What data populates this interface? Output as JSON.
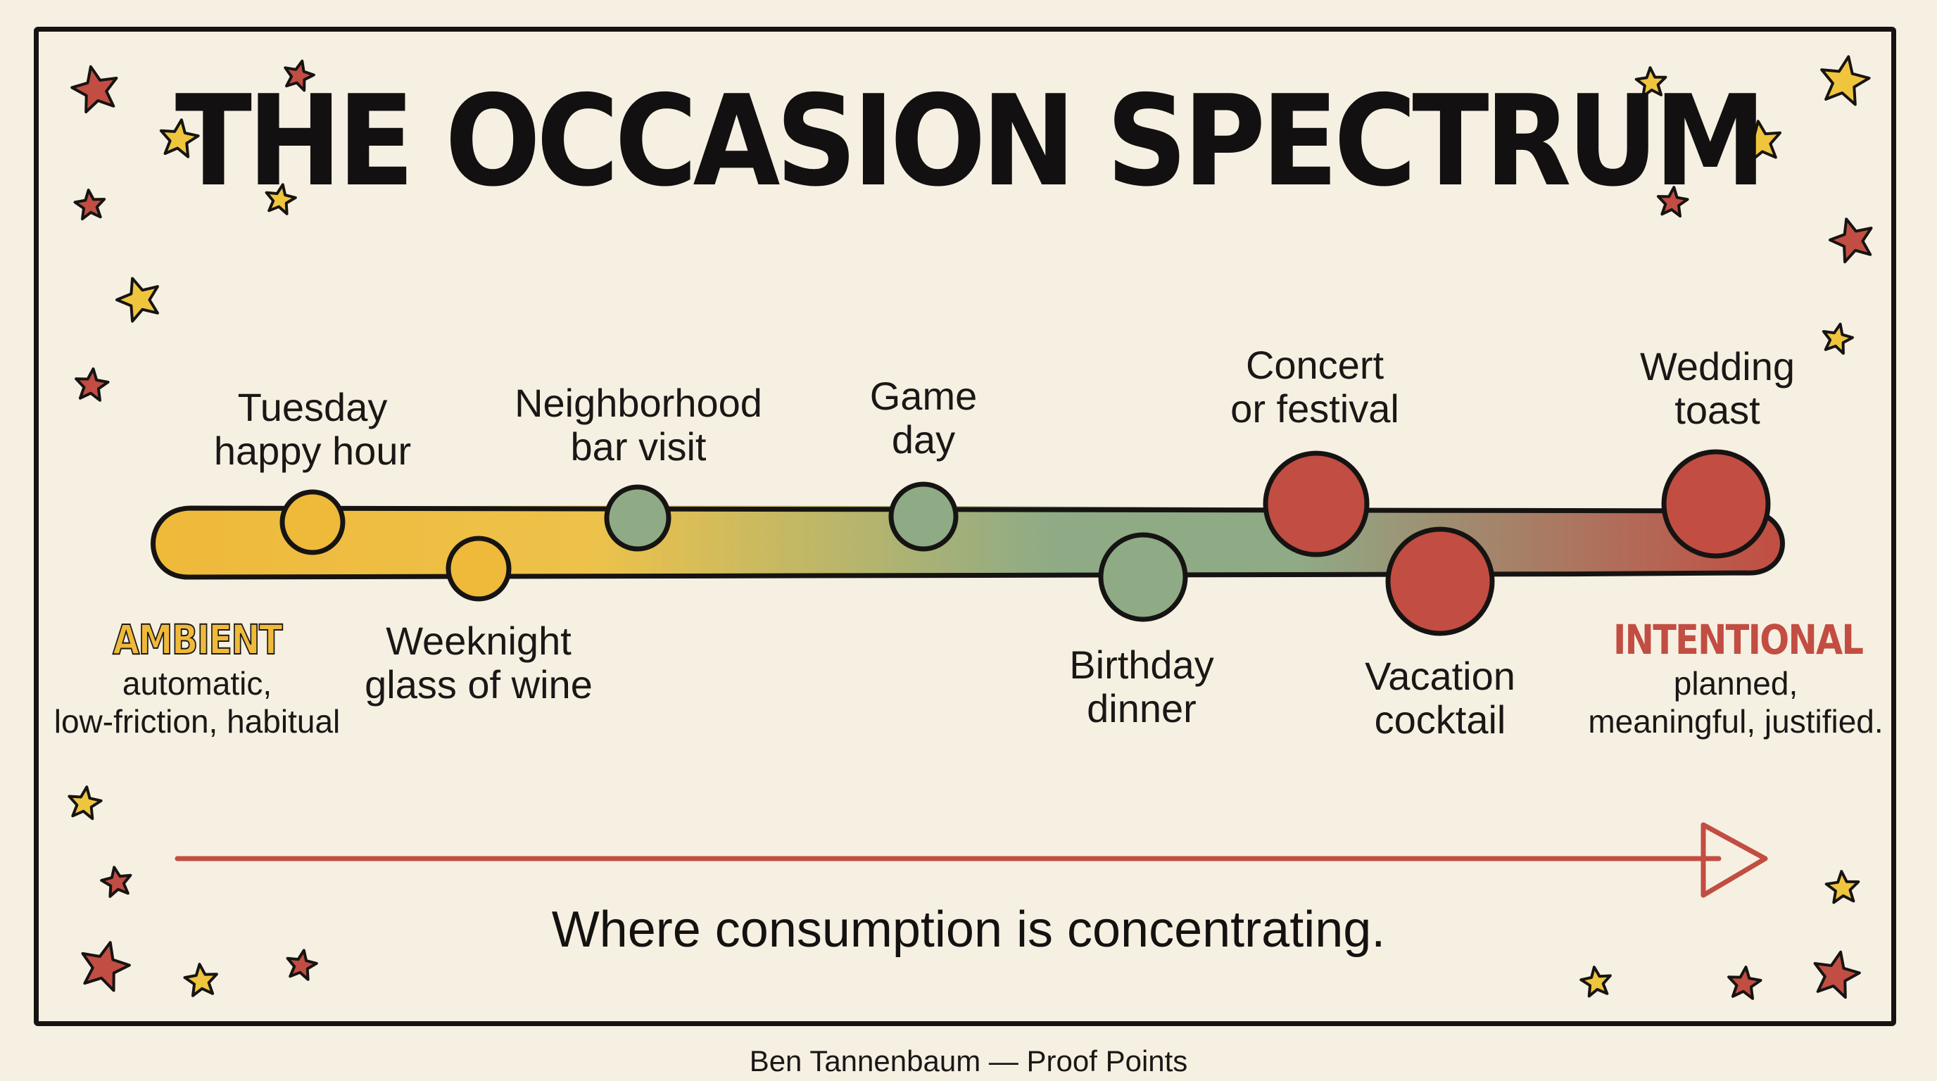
{
  "title": "THE OCCASION SPECTRUM",
  "ends": {
    "ambient": {
      "title": "AMBIENT",
      "description": "automatic,\nlow-friction, habitual",
      "color": "#efb93a"
    },
    "intentional": {
      "title": "INTENTIONAL",
      "description": "planned,\nmeaningful, justified.",
      "color": "#c24d42"
    }
  },
  "occasions": [
    {
      "label": "Tuesday\nhappy hour",
      "color": "#efb93a"
    },
    {
      "label": "Weeknight\nglass of wine",
      "color": "#efb93a"
    },
    {
      "label": "Neighborhood\nbar visit",
      "color": "#8fab86"
    },
    {
      "label": "Game\nday",
      "color": "#8fab86"
    },
    {
      "label": "Birthday\ndinner",
      "color": "#8fab86"
    },
    {
      "label": "Concert\nor festival",
      "color": "#c24d42"
    },
    {
      "label": "Vacation\ncocktail",
      "color": "#c24d42"
    },
    {
      "label": "Wedding\ntoast",
      "color": "#c24d42"
    }
  ],
  "caption": "Where consumption is concentrating.",
  "credit": "Ben Tannenbaum — Proof Points",
  "colors": {
    "ambient": "#efb93a",
    "neutral": "#8fab86",
    "intentional": "#c24d42",
    "ink": "#161413",
    "background": "#f6f0e2",
    "star_yellow": "#f0c53e",
    "star_red": "#c24d42"
  }
}
